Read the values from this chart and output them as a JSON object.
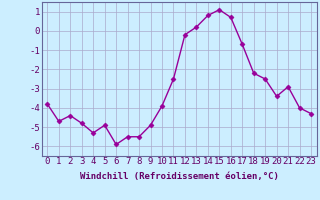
{
  "x": [
    0,
    1,
    2,
    3,
    4,
    5,
    6,
    7,
    8,
    9,
    10,
    11,
    12,
    13,
    14,
    15,
    16,
    17,
    18,
    19,
    20,
    21,
    22,
    23
  ],
  "y": [
    -3.8,
    -4.7,
    -4.4,
    -4.8,
    -5.3,
    -4.9,
    -5.9,
    -5.5,
    -5.5,
    -4.9,
    -3.9,
    -2.5,
    -0.2,
    0.2,
    0.8,
    1.1,
    0.7,
    -0.7,
    -2.2,
    -2.5,
    -3.4,
    -2.9,
    -4.0,
    -4.3
  ],
  "line_color": "#990099",
  "marker": "D",
  "markersize": 2.5,
  "linewidth": 1.0,
  "xlabel": "Windchill (Refroidissement éolien,°C)",
  "xlabel_fontsize": 6.5,
  "bg_color": "#cceeff",
  "grid_color": "#aaaacc",
  "xlim": [
    -0.5,
    23.5
  ],
  "ylim": [
    -6.5,
    1.5
  ],
  "yticks": [
    -6,
    -5,
    -4,
    -3,
    -2,
    -1,
    0,
    1
  ],
  "xticks": [
    0,
    1,
    2,
    3,
    4,
    5,
    6,
    7,
    8,
    9,
    10,
    11,
    12,
    13,
    14,
    15,
    16,
    17,
    18,
    19,
    20,
    21,
    22,
    23
  ],
  "tick_fontsize": 6.5,
  "spine_color": "#666699",
  "text_color": "#660066"
}
